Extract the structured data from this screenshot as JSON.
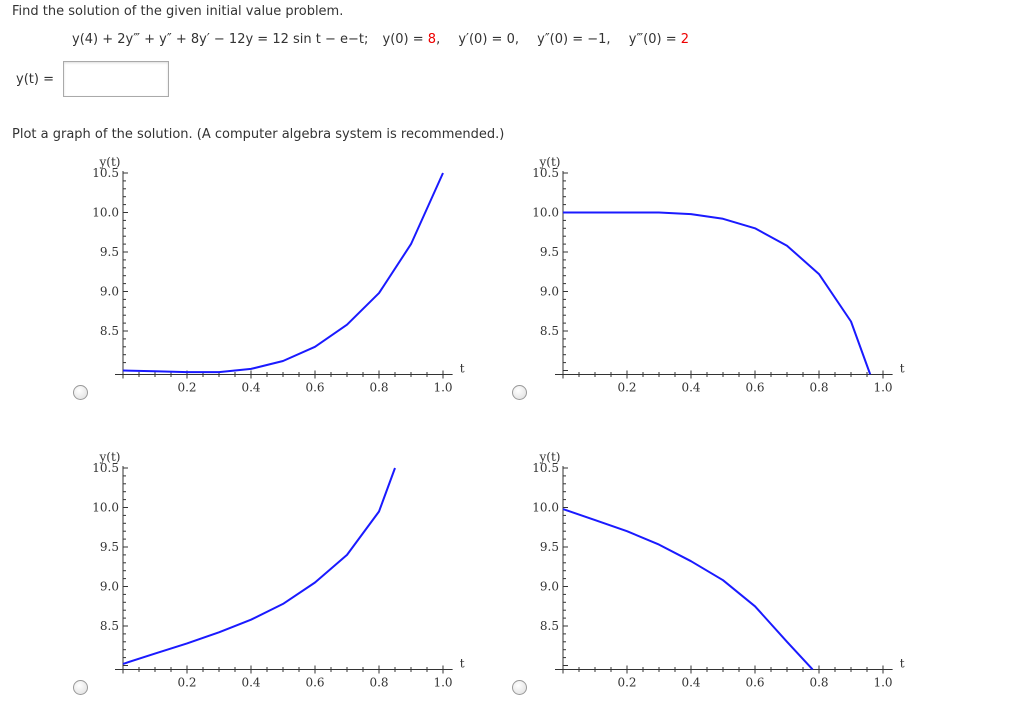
{
  "instruction": "Find the solution of the given initial value problem.",
  "equation": {
    "lhs": "y(4) + 2y‴ + y″ + 8y′ − 12y = 12 sin t − e−t;",
    "ic": [
      {
        "label": "y(0) = ",
        "value": "8",
        "highlight": true
      },
      {
        "label": "y′(0) = ",
        "value": "0",
        "highlight": false
      },
      {
        "label": "y″(0) = ",
        "value": "−1",
        "highlight": false
      },
      {
        "label": "y‴(0) = ",
        "value": "2",
        "highlight": true
      }
    ]
  },
  "answer": {
    "label": "y(t) =",
    "value": ""
  },
  "plot_prompt": "Plot a graph of the solution. (A computer algebra system is recommended.)",
  "colors": {
    "curve": "#1a1aff",
    "highlight": "#e00000"
  },
  "chart_data": [
    {
      "type": "line",
      "ylabel": "y(t)",
      "xlabel": "t",
      "xlim": [
        0,
        1.0
      ],
      "ylim": [
        7.95,
        10.5
      ],
      "xticks": [
        "0.2",
        "0.4",
        "0.6",
        "0.8",
        "1.0"
      ],
      "yticks": [
        "10.5",
        "10.0",
        "9.5",
        "9.0",
        "8.5"
      ],
      "selected": false,
      "x": [
        0,
        0.1,
        0.2,
        0.3,
        0.4,
        0.5,
        0.6,
        0.7,
        0.8,
        0.9,
        1.0
      ],
      "y": [
        8.0,
        7.99,
        7.98,
        7.98,
        8.02,
        8.12,
        8.3,
        8.58,
        8.98,
        9.6,
        10.5
      ]
    },
    {
      "type": "line",
      "ylabel": "y(t)",
      "xlabel": "t",
      "xlim": [
        0,
        1.0
      ],
      "ylim": [
        7.95,
        10.5
      ],
      "xticks": [
        "0.2",
        "0.4",
        "0.6",
        "0.8",
        "1.0"
      ],
      "yticks": [
        "10.5",
        "10.0",
        "9.5",
        "9.0",
        "8.5"
      ],
      "selected": false,
      "x": [
        0,
        0.1,
        0.2,
        0.3,
        0.4,
        0.5,
        0.6,
        0.7,
        0.8,
        0.9,
        0.96
      ],
      "y": [
        10.0,
        10.0,
        10.0,
        10.0,
        9.98,
        9.92,
        9.8,
        9.58,
        9.22,
        8.62,
        7.95
      ]
    },
    {
      "type": "line",
      "ylabel": "y(t)",
      "xlabel": "t",
      "xlim": [
        0,
        1.0
      ],
      "ylim": [
        7.95,
        10.5
      ],
      "xticks": [
        "0.2",
        "0.4",
        "0.6",
        "0.8",
        "1.0"
      ],
      "yticks": [
        "10.5",
        "10.0",
        "9.5",
        "9.0",
        "8.5"
      ],
      "selected": false,
      "x": [
        0,
        0.1,
        0.2,
        0.3,
        0.4,
        0.5,
        0.6,
        0.7,
        0.8,
        0.85
      ],
      "y": [
        8.02,
        8.15,
        8.28,
        8.42,
        8.58,
        8.78,
        9.05,
        9.4,
        9.95,
        10.5
      ]
    },
    {
      "type": "line",
      "ylabel": "y(t)",
      "xlabel": "t",
      "xlim": [
        0,
        1.0
      ],
      "ylim": [
        7.95,
        10.5
      ],
      "xticks": [
        "0.2",
        "0.4",
        "0.6",
        "0.8",
        "1.0"
      ],
      "yticks": [
        "10.5",
        "10.0",
        "9.5",
        "9.0",
        "8.5"
      ],
      "selected": false,
      "x": [
        0,
        0.1,
        0.2,
        0.3,
        0.4,
        0.5,
        0.6,
        0.7,
        0.78
      ],
      "y": [
        9.98,
        9.84,
        9.7,
        9.53,
        9.32,
        9.08,
        8.75,
        8.3,
        7.95
      ]
    }
  ]
}
